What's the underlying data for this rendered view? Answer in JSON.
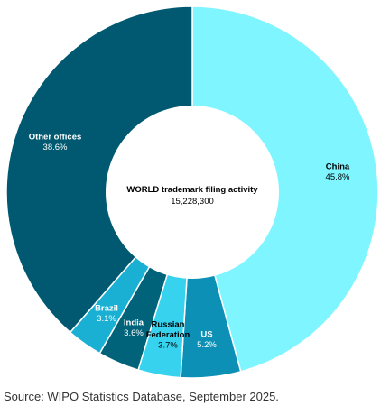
{
  "chart_data": {
    "type": "pie",
    "variant": "donut",
    "center_title": "WORLD trademark filing activity",
    "center_value": "15,228,300",
    "slices": [
      {
        "label": "China",
        "label_lines": [
          "China"
        ],
        "value": 45.8,
        "pct_text": "45.8%",
        "color": "#7FF5FF",
        "text_color": "#000000"
      },
      {
        "label": "US",
        "label_lines": [
          "US"
        ],
        "value": 5.2,
        "pct_text": "5.2%",
        "color": "#0C90B5",
        "text_color": "#ffffff"
      },
      {
        "label": "Russian Federation",
        "label_lines": [
          "Russian",
          "Federation"
        ],
        "value": 3.7,
        "pct_text": "3.7%",
        "color": "#36D2EE",
        "text_color": "#000000"
      },
      {
        "label": "India",
        "label_lines": [
          "India"
        ],
        "value": 3.6,
        "pct_text": "3.6%",
        "color": "#00637A",
        "text_color": "#ffffff"
      },
      {
        "label": "Brazil",
        "label_lines": [
          "Brazil"
        ],
        "value": 3.1,
        "pct_text": "3.1%",
        "color": "#1AB0D4",
        "text_color": "#ffffff"
      },
      {
        "label": "Other offices",
        "label_lines": [
          "Other offices"
        ],
        "value": 38.6,
        "pct_text": "38.6%",
        "color": "#005970",
        "text_color": "#ffffff"
      }
    ]
  },
  "source_text": "Source: WIPO Statistics Database, September 2025."
}
